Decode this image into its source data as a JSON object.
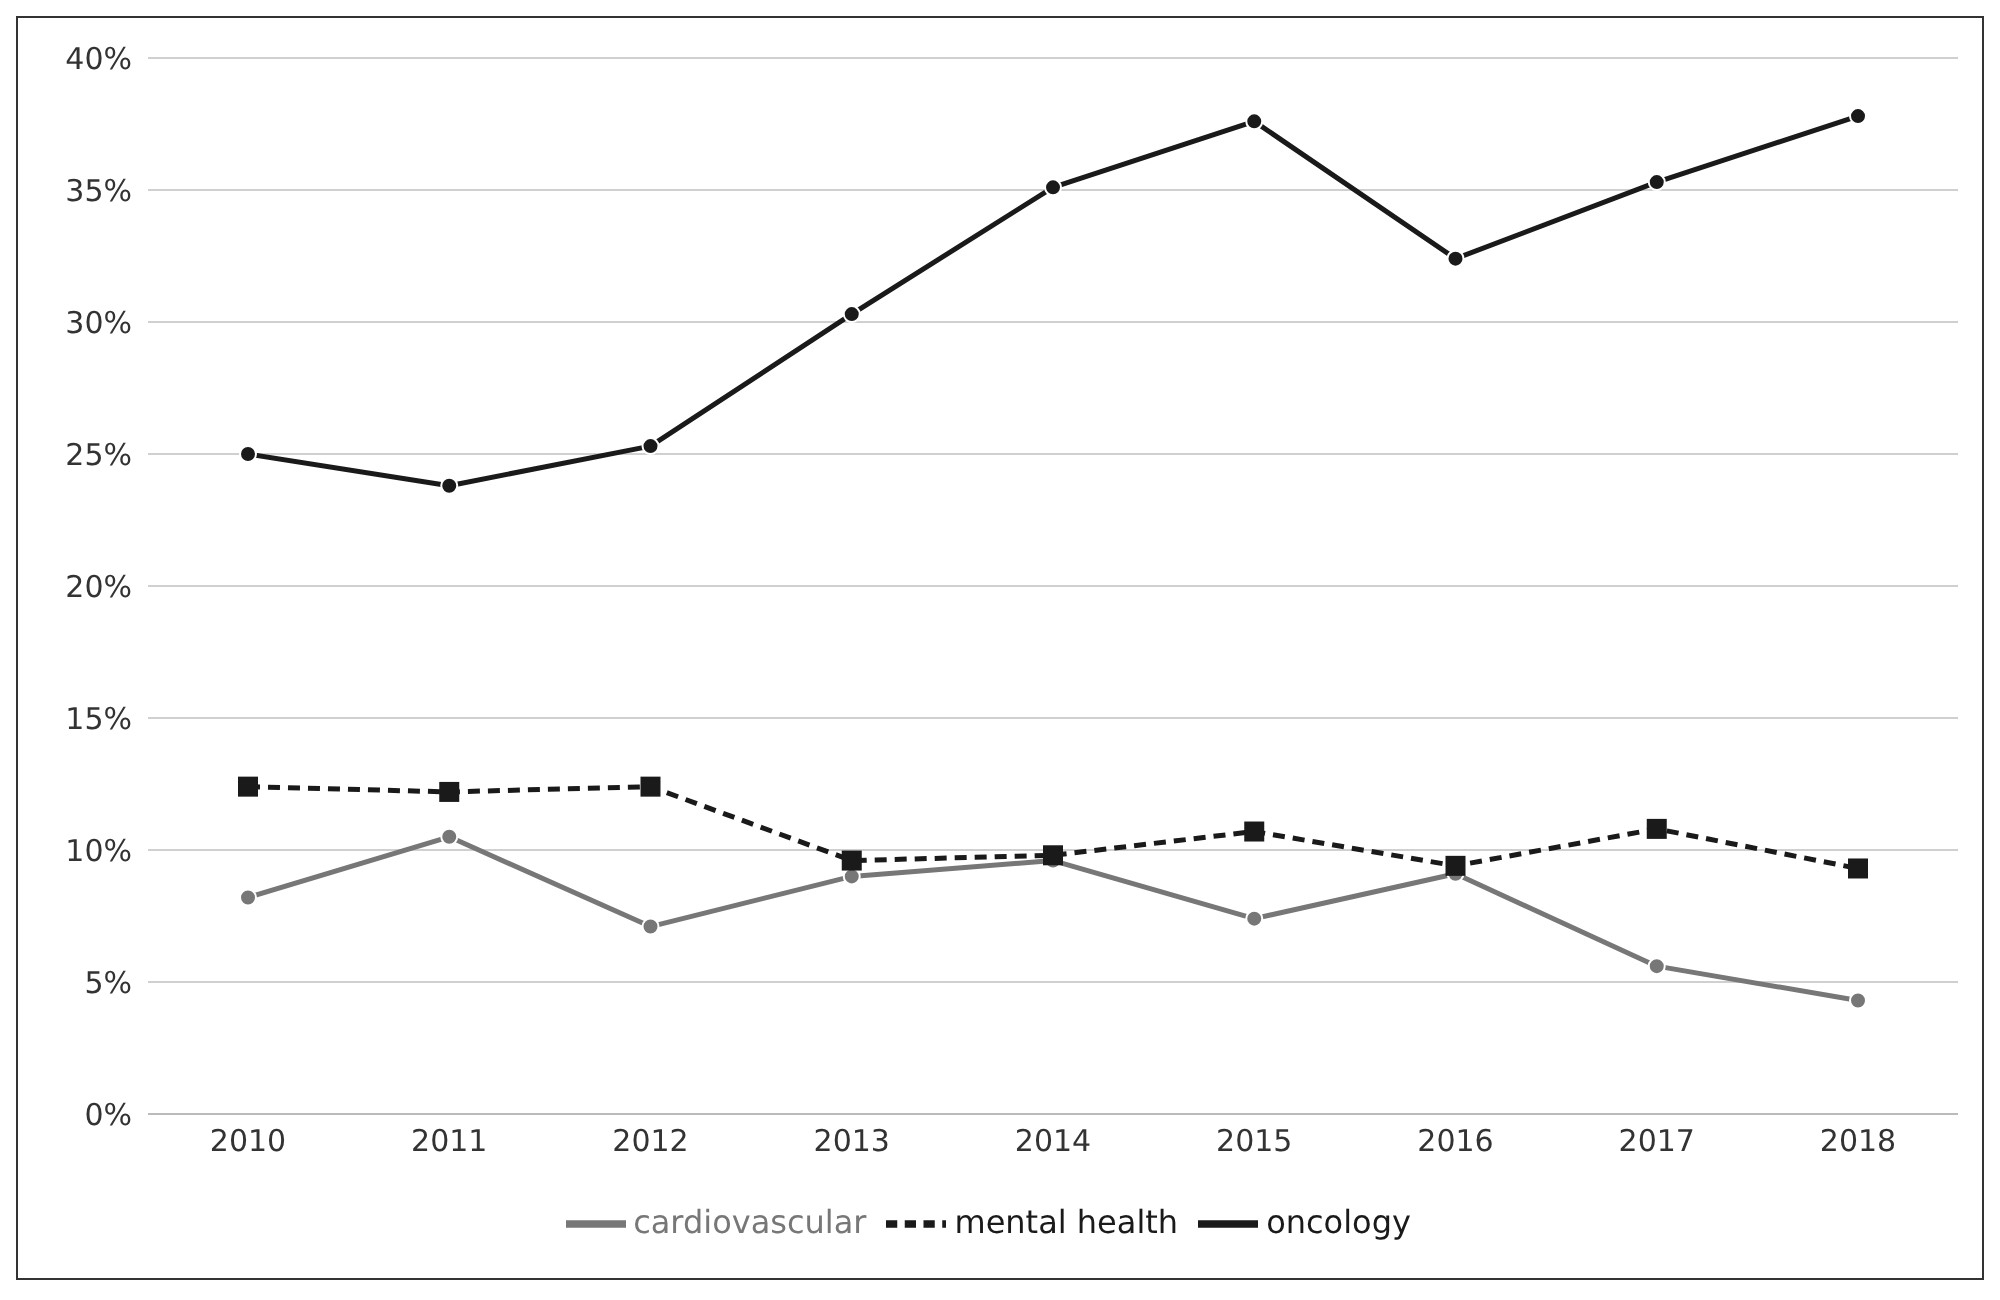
{
  "chart_data": {
    "type": "line",
    "categories": [
      "2010",
      "2011",
      "2012",
      "2013",
      "2014",
      "2015",
      "2016",
      "2017",
      "2018"
    ],
    "series": [
      {
        "name": "oncology",
        "color": "#1a1a1a",
        "marker": "circle",
        "line_style": "solid",
        "values": [
          25.0,
          23.8,
          25.3,
          30.3,
          35.1,
          37.6,
          32.4,
          35.3,
          37.8
        ]
      },
      {
        "name": "mental health",
        "color": "#1a1a1a",
        "marker": "square",
        "line_style": "dashed",
        "values": [
          12.4,
          12.2,
          12.4,
          9.6,
          9.8,
          10.7,
          9.4,
          10.8,
          9.3
        ]
      },
      {
        "name": "cardiovascular",
        "color": "#777777",
        "marker": "circle",
        "line_style": "solid",
        "values": [
          8.2,
          10.5,
          7.1,
          9.0,
          9.6,
          7.4,
          9.1,
          5.6,
          4.3
        ]
      }
    ],
    "ylim": [
      0,
      40
    ],
    "yticks": [
      {
        "value": 0,
        "label": "0%"
      },
      {
        "value": 5,
        "label": "5%"
      },
      {
        "value": 10,
        "label": "10%"
      },
      {
        "value": 15,
        "label": "15%"
      },
      {
        "value": 20,
        "label": "20%"
      },
      {
        "value": 25,
        "label": "25%"
      },
      {
        "value": 30,
        "label": "30%"
      },
      {
        "value": 35,
        "label": "35%"
      },
      {
        "value": 40,
        "label": "40%"
      }
    ],
    "grid": "y",
    "legend": "bottom"
  }
}
